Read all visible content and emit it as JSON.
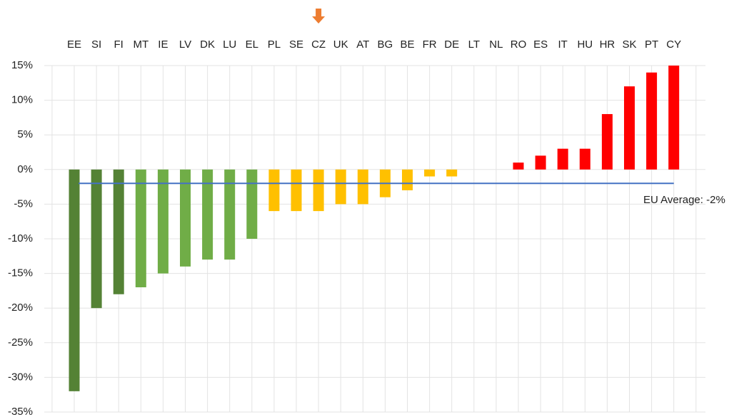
{
  "chart_data": {
    "type": "bar",
    "categories": [
      "EE",
      "SI",
      "FI",
      "MT",
      "IE",
      "LV",
      "DK",
      "LU",
      "EL",
      "PL",
      "SE",
      "CZ",
      "UK",
      "AT",
      "BG",
      "BE",
      "FR",
      "DE",
      "LT",
      "NL",
      "RO",
      "ES",
      "IT",
      "HU",
      "HR",
      "SK",
      "PT",
      "CY"
    ],
    "values": [
      -32,
      -20,
      -18,
      -17,
      -15,
      -14,
      -13,
      -13,
      -10,
      -6,
      -6,
      -6,
      -5,
      -5,
      -4,
      -3,
      -1,
      -1,
      0,
      0,
      1,
      2,
      3,
      3,
      8,
      12,
      14,
      15
    ],
    "colors": [
      "#548235",
      "#548235",
      "#548235",
      "#70ad47",
      "#70ad47",
      "#70ad47",
      "#70ad47",
      "#70ad47",
      "#70ad47",
      "#ffc000",
      "#ffc000",
      "#ffc000",
      "#ffc000",
      "#ffc000",
      "#ffc000",
      "#ffc000",
      "#ffc000",
      "#ffc000",
      "#ffc000",
      "#ffc000",
      "#ff0000",
      "#ff0000",
      "#ff0000",
      "#ff0000",
      "#ff0000",
      "#ff0000",
      "#ff0000",
      "#ff0000"
    ],
    "ylim": [
      -35,
      15
    ],
    "yticks": [
      {
        "value": 15,
        "label": "15%"
      },
      {
        "value": 10,
        "label": "10%"
      },
      {
        "value": 5,
        "label": "5%"
      },
      {
        "value": 0,
        "label": "0%"
      },
      {
        "value": -5,
        "label": "-5%"
      },
      {
        "value": -10,
        "label": "-10%"
      },
      {
        "value": -15,
        "label": "-15%"
      },
      {
        "value": -20,
        "label": "-20%"
      },
      {
        "value": -25,
        "label": "-25%"
      },
      {
        "value": -30,
        "label": "-30%"
      },
      {
        "value": -35,
        "label": "-35%"
      }
    ],
    "grid": true,
    "average": {
      "value": -2,
      "label": "EU Average: -2%",
      "color": "#4472c4"
    },
    "highlight": "CZ",
    "highlight_color": "#ed7d31"
  }
}
